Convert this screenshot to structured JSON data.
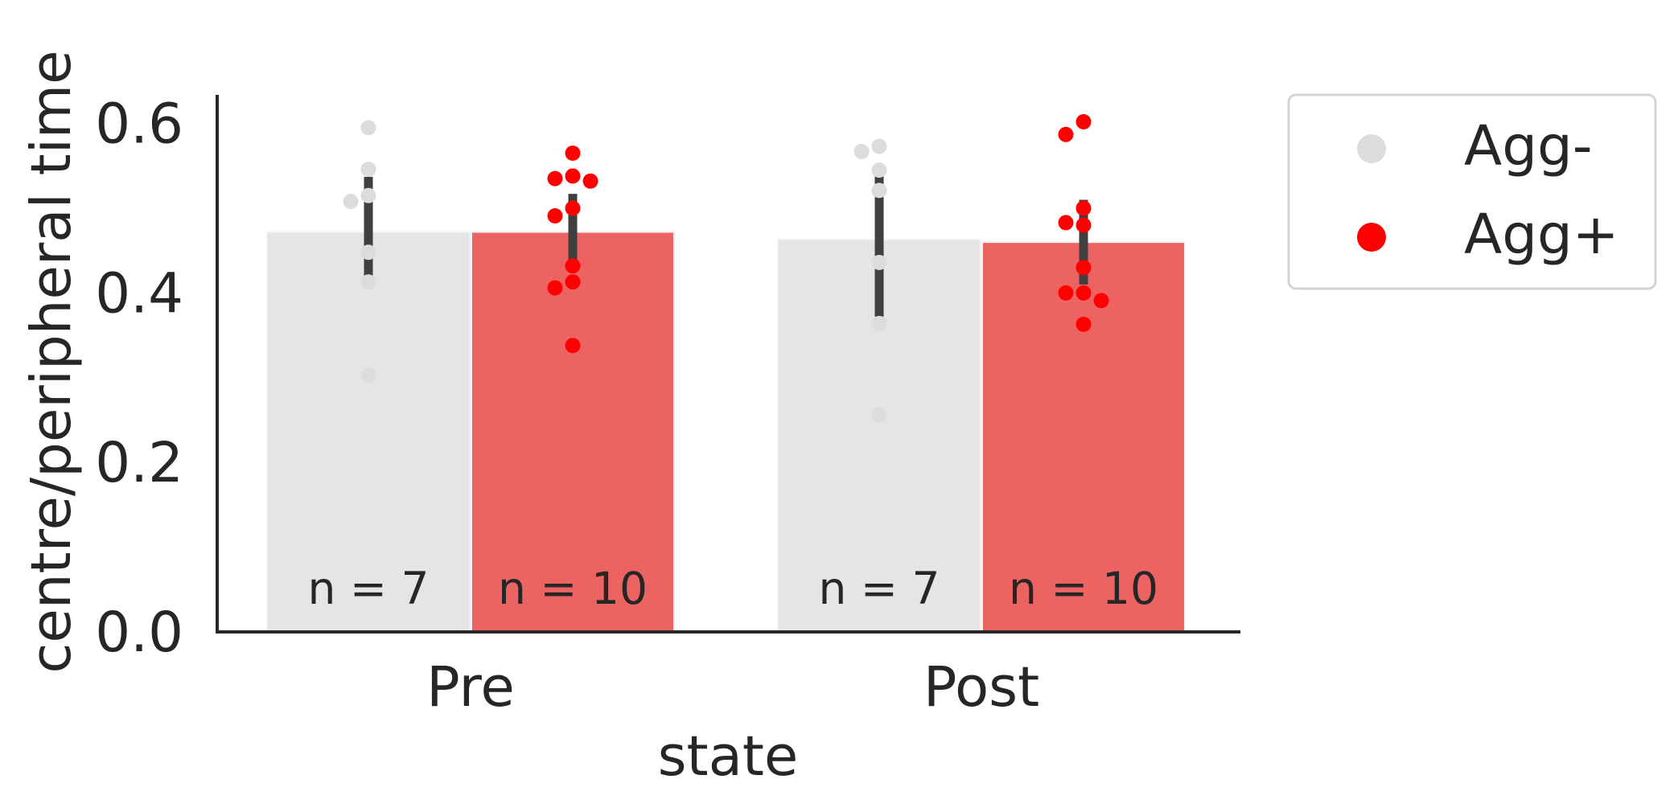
{
  "chart_data": {
    "type": "bar",
    "title": "",
    "xlabel": "state",
    "ylabel": "centre/peripheral time",
    "categories": [
      "Pre",
      "Post"
    ],
    "ylim": [
      0,
      0.63
    ],
    "yticks": [
      "0.0",
      "0.2",
      "0.4",
      "0.6"
    ],
    "grid": false,
    "legend": {
      "placement": "outside-top-right"
    },
    "series": [
      {
        "name": "Agg-",
        "color": "#dcdcdc",
        "values": [
          0.472,
          0.463
        ],
        "errors": [
          [
            0.415,
            0.537
          ],
          [
            0.372,
            0.542
          ]
        ],
        "n_labels": [
          "n = 7",
          "n = 7"
        ],
        "points": [
          [
            0.595,
            0.546,
            0.515,
            0.508,
            0.448,
            0.413,
            0.303
          ],
          [
            0.573,
            0.567,
            0.545,
            0.521,
            0.436,
            0.364,
            0.256
          ]
        ]
      },
      {
        "name": "Agg+",
        "color": "#e8413f",
        "point_color": "#ff0000",
        "values": [
          0.472,
          0.46
        ],
        "errors": [
          [
            0.432,
            0.517
          ],
          [
            0.41,
            0.51
          ]
        ],
        "n_labels": [
          "n = 10",
          "n = 10"
        ],
        "points": [
          [
            0.565,
            0.538,
            0.535,
            0.532,
            0.5,
            0.491,
            0.432,
            0.413,
            0.406,
            0.338
          ],
          [
            0.602,
            0.587,
            0.5,
            0.483,
            0.48,
            0.43,
            0.4,
            0.4,
            0.391,
            0.363
          ]
        ]
      }
    ]
  }
}
